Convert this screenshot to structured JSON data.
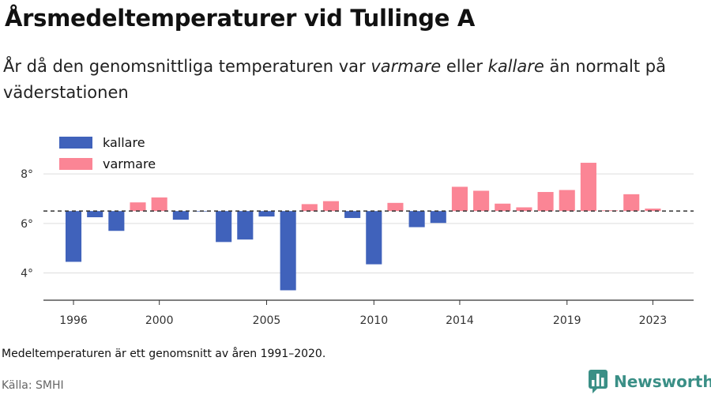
{
  "title": "Årsmedeltemperaturer vid Tullinge A",
  "subtitle": {
    "part1": "År då den genomsnittliga temperaturen var ",
    "warm": "varmare",
    "part2": " eller ",
    "cold": "kallare",
    "part3": " än normalt på väderstationen"
  },
  "footnote": "Medeltemperaturen är ett genomsnitt av åren 1991–2020.",
  "source": "Källa: SMHI",
  "logo": {
    "text": "Newsworthy",
    "icon": "newsworthy-bar-chart-icon"
  },
  "colors": {
    "kallare": "#4062bb",
    "varmare": "#fb8595",
    "baseline": "#333333",
    "grid": "#dddddd",
    "accent": "#3a8f86"
  },
  "chart_data": {
    "type": "bar",
    "baseline": 6.5,
    "baseline_style": "dashed",
    "grid": true,
    "ylim": [
      2.9,
      9.6
    ],
    "xlim": [
      1994.6,
      2024.9
    ],
    "yticks": [
      {
        "value": 4,
        "label": "4°"
      },
      {
        "value": 6,
        "label": "6°"
      },
      {
        "value": 8,
        "label": "8°"
      }
    ],
    "xticks": [
      {
        "value": 1996,
        "label": "1996"
      },
      {
        "value": 2000,
        "label": "2000"
      },
      {
        "value": 2005,
        "label": "2005"
      },
      {
        "value": 2010,
        "label": "2010"
      },
      {
        "value": 2014,
        "label": "2014"
      },
      {
        "value": 2019,
        "label": "2019"
      },
      {
        "value": 2023,
        "label": "2023"
      }
    ],
    "legend": {
      "placement": "top-left",
      "items": [
        {
          "key": "kallare",
          "label": "kallare"
        },
        {
          "key": "varmare",
          "label": "varmare"
        }
      ]
    },
    "x": [
      1996,
      1997,
      1998,
      1999,
      2000,
      2001,
      2002,
      2003,
      2004,
      2005,
      2006,
      2007,
      2008,
      2009,
      2010,
      2011,
      2012,
      2013,
      2014,
      2015,
      2016,
      2017,
      2018,
      2019,
      2020,
      2021,
      2022,
      2023
    ],
    "values": [
      4.45,
      6.25,
      5.7,
      6.85,
      7.05,
      6.15,
      6.48,
      5.25,
      5.35,
      6.28,
      3.3,
      6.78,
      6.9,
      6.22,
      4.35,
      6.83,
      5.85,
      6.02,
      7.48,
      7.32,
      6.8,
      6.65,
      7.27,
      7.35,
      8.45,
      6.53,
      7.18,
      6.6
    ]
  }
}
